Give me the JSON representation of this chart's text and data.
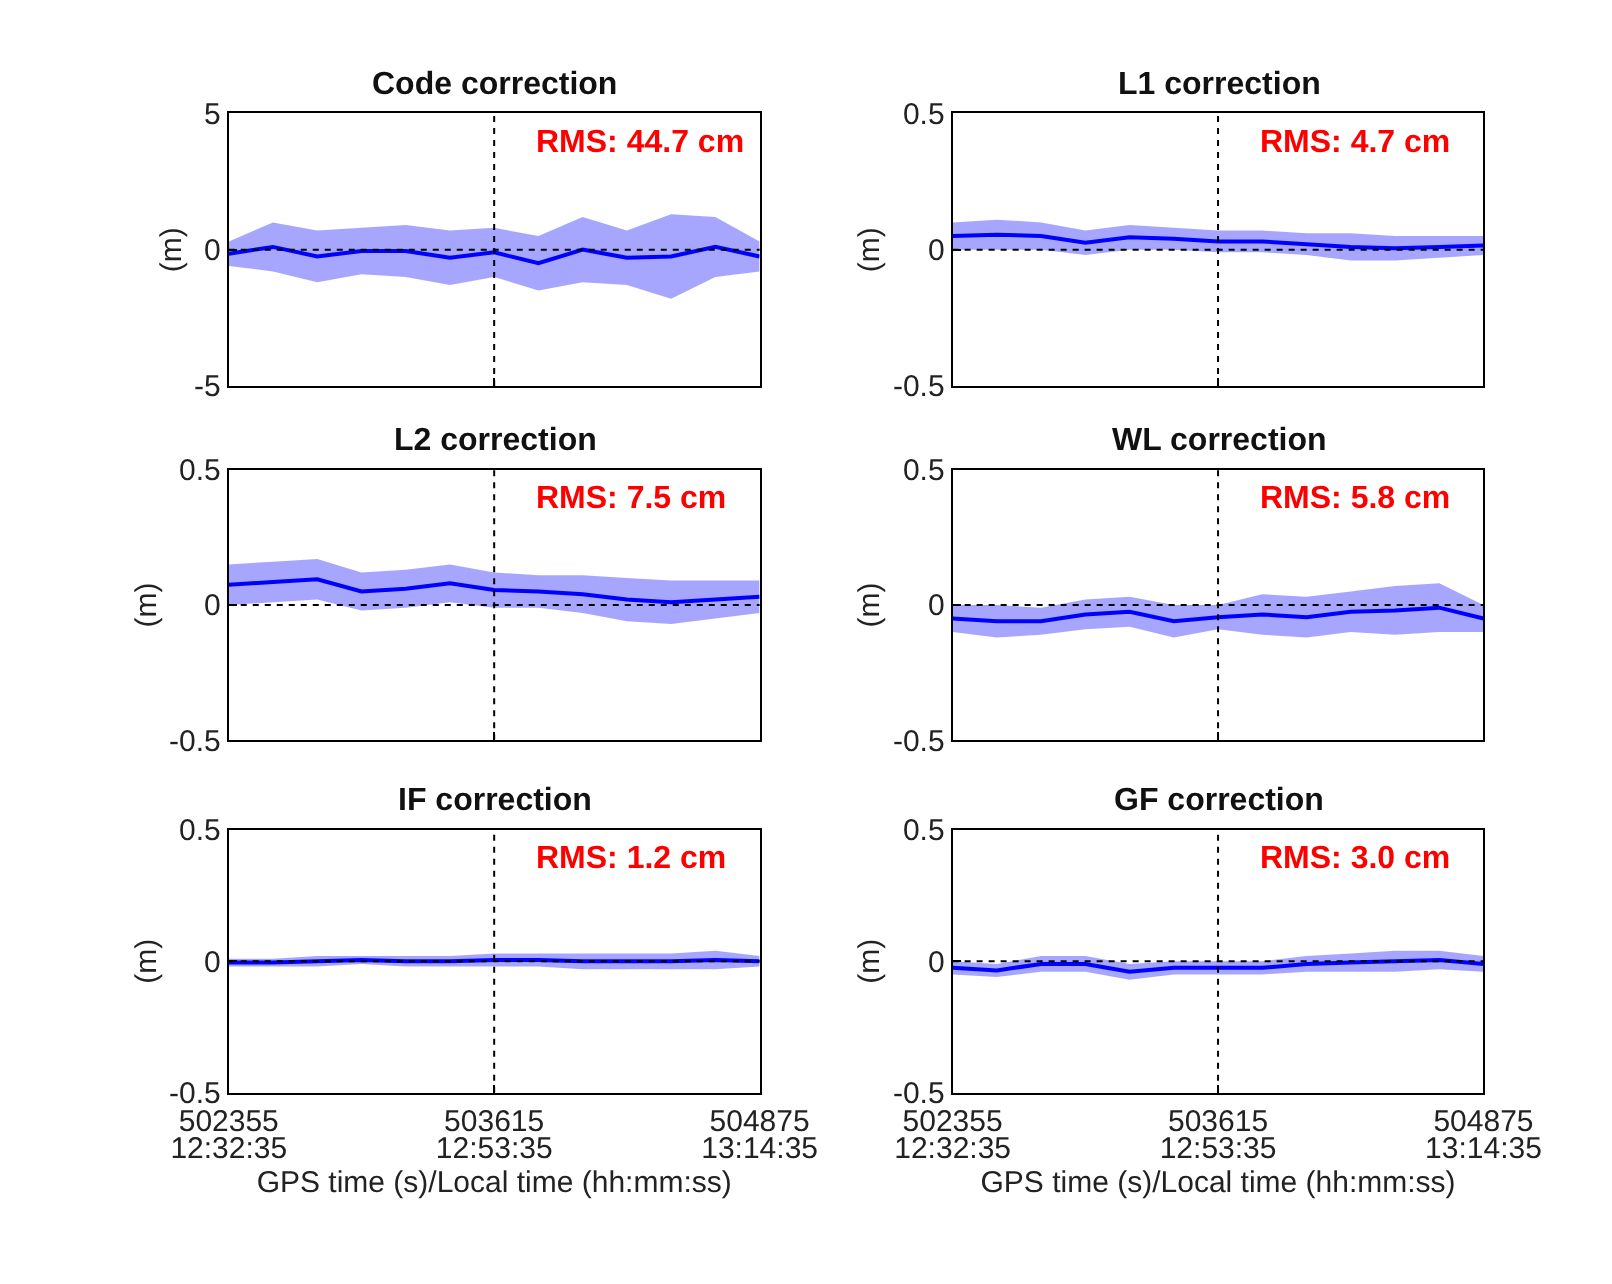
{
  "chart_data": [
    {
      "type": "line",
      "title": "Code correction",
      "ylabel": "(m)",
      "x": [
        502355,
        502565,
        502775,
        502985,
        503195,
        503405,
        503615,
        503825,
        504035,
        504245,
        504455,
        504665,
        504875
      ],
      "xlim": [
        502355,
        504875
      ],
      "xticks": [
        {
          "value": 502355,
          "label": null
        },
        {
          "value": 503615,
          "label": null
        },
        {
          "value": 504875,
          "label": null
        }
      ],
      "ylim": [
        -5,
        5
      ],
      "yticks": [
        -5,
        0,
        5
      ],
      "tick_labels": "y",
      "annotations": [
        "RMS: 44.7 cm"
      ],
      "ref_lines": [
        {
          "axis": "x",
          "value": 503615,
          "line_style": "dotted",
          "color": "#000000"
        },
        {
          "axis": "y",
          "value": 0,
          "line_style": "dotted",
          "color": "#000000"
        }
      ],
      "series": [
        {
          "color": "#0000ff",
          "values": [
            -0.15,
            0.1,
            -0.25,
            -0.05,
            -0.05,
            -0.3,
            -0.1,
            -0.5,
            0,
            -0.3,
            -0.25,
            0.1,
            -0.25
          ],
          "lower": [
            -0.6,
            -0.8,
            -1.2,
            -0.9,
            -1.0,
            -1.3,
            -1.0,
            -1.5,
            -1.2,
            -1.3,
            -1.8,
            -1.0,
            -0.8
          ],
          "upper": [
            0.3,
            1.0,
            0.7,
            0.8,
            0.9,
            0.7,
            0.8,
            0.5,
            1.2,
            0.7,
            1.3,
            1.2,
            0.3
          ]
        }
      ]
    },
    {
      "type": "line",
      "title": "L1 correction",
      "ylabel": "(m)",
      "x": [
        502355,
        502565,
        502775,
        502985,
        503195,
        503405,
        503615,
        503825,
        504035,
        504245,
        504455,
        504665,
        504875
      ],
      "xlim": [
        502355,
        504875
      ],
      "xticks": [
        {
          "value": 502355,
          "label": null
        },
        {
          "value": 503615,
          "label": null
        },
        {
          "value": 504875,
          "label": null
        }
      ],
      "ylim": [
        -0.5,
        0.5
      ],
      "yticks": [
        -0.5,
        0,
        0.5
      ],
      "tick_labels": "y",
      "annotations": [
        "RMS: 4.7 cm"
      ],
      "ref_lines": [
        {
          "axis": "x",
          "value": 503615,
          "line_style": "dotted",
          "color": "#000000"
        },
        {
          "axis": "y",
          "value": 0,
          "line_style": "dotted",
          "color": "#000000"
        }
      ],
      "series": [
        {
          "color": "#0000ff",
          "values": [
            0.05,
            0.055,
            0.05,
            0.025,
            0.045,
            0.04,
            0.03,
            0.03,
            0.02,
            0.01,
            0.005,
            0.01,
            0.015
          ],
          "lower": [
            0.0,
            0.0,
            0.0,
            -0.02,
            0.0,
            0.0,
            -0.01,
            -0.01,
            -0.02,
            -0.04,
            -0.04,
            -0.03,
            -0.02
          ],
          "upper": [
            0.1,
            0.11,
            0.1,
            0.07,
            0.09,
            0.08,
            0.07,
            0.07,
            0.06,
            0.06,
            0.05,
            0.05,
            0.05
          ]
        }
      ]
    },
    {
      "type": "line",
      "title": "L2 correction",
      "ylabel": "(m)",
      "x": [
        502355,
        502565,
        502775,
        502985,
        503195,
        503405,
        503615,
        503825,
        504035,
        504245,
        504455,
        504665,
        504875
      ],
      "xlim": [
        502355,
        504875
      ],
      "xticks": [
        {
          "value": 502355,
          "label": null
        },
        {
          "value": 503615,
          "label": null
        },
        {
          "value": 504875,
          "label": null
        }
      ],
      "ylim": [
        -0.5,
        0.5
      ],
      "yticks": [
        -0.5,
        0,
        0.5
      ],
      "tick_labels": "y",
      "annotations": [
        "RMS: 7.5 cm"
      ],
      "ref_lines": [
        {
          "axis": "x",
          "value": 503615,
          "line_style": "dotted",
          "color": "#000000"
        },
        {
          "axis": "y",
          "value": 0,
          "line_style": "dotted",
          "color": "#000000"
        }
      ],
      "series": [
        {
          "color": "#0000ff",
          "values": [
            0.075,
            0.085,
            0.095,
            0.05,
            0.06,
            0.08,
            0.055,
            0.05,
            0.04,
            0.02,
            0.01,
            0.02,
            0.03
          ],
          "lower": [
            0.0,
            0.01,
            0.02,
            -0.02,
            -0.01,
            0.01,
            -0.01,
            -0.01,
            -0.03,
            -0.06,
            -0.07,
            -0.05,
            -0.03
          ],
          "upper": [
            0.15,
            0.16,
            0.17,
            0.12,
            0.13,
            0.15,
            0.12,
            0.11,
            0.11,
            0.1,
            0.09,
            0.09,
            0.09
          ]
        }
      ]
    },
    {
      "type": "line",
      "title": "WL correction",
      "ylabel": "(m)",
      "x": [
        502355,
        502565,
        502775,
        502985,
        503195,
        503405,
        503615,
        503825,
        504035,
        504245,
        504455,
        504665,
        504875
      ],
      "xlim": [
        502355,
        504875
      ],
      "xticks": [
        {
          "value": 502355,
          "label": null
        },
        {
          "value": 503615,
          "label": null
        },
        {
          "value": 504875,
          "label": null
        }
      ],
      "ylim": [
        -0.5,
        0.5
      ],
      "yticks": [
        -0.5,
        0,
        0.5
      ],
      "tick_labels": "y",
      "annotations": [
        "RMS: 5.8 cm"
      ],
      "ref_lines": [
        {
          "axis": "x",
          "value": 503615,
          "line_style": "dotted",
          "color": "#000000"
        },
        {
          "axis": "y",
          "value": 0,
          "line_style": "dotted",
          "color": "#000000"
        }
      ],
      "series": [
        {
          "color": "#0000ff",
          "values": [
            -0.05,
            -0.06,
            -0.06,
            -0.035,
            -0.025,
            -0.06,
            -0.045,
            -0.035,
            -0.045,
            -0.025,
            -0.02,
            -0.01,
            -0.05
          ],
          "lower": [
            -0.1,
            -0.12,
            -0.11,
            -0.09,
            -0.08,
            -0.12,
            -0.09,
            -0.11,
            -0.12,
            -0.1,
            -0.11,
            -0.1,
            -0.1
          ],
          "upper": [
            0.0,
            0.0,
            -0.01,
            0.02,
            0.03,
            0.0,
            0.0,
            0.04,
            0.03,
            0.05,
            0.07,
            0.08,
            0.0
          ]
        }
      ]
    },
    {
      "type": "line",
      "title": "IF correction",
      "ylabel": "(m)",
      "xlabel": "GPS time (s)/Local time (hh:mm:ss)",
      "x": [
        502355,
        502565,
        502775,
        502985,
        503195,
        503405,
        503615,
        503825,
        504035,
        504245,
        504455,
        504665,
        504875
      ],
      "xlim": [
        502355,
        504875
      ],
      "xticks": [
        502355,
        503615,
        504875
      ],
      "x2lim": [
        12.54306,
        13.24306
      ],
      "x2ticks": [
        {
          "value": 12.54306,
          "label": "12:32:35"
        },
        {
          "value": 12.89306,
          "label": "12:53:35"
        },
        {
          "value": 13.24306,
          "label": "13:14:35"
        }
      ],
      "ylim": [
        -0.5,
        0.5
      ],
      "yticks": [
        -0.5,
        0,
        0.5
      ],
      "annotations": [
        "RMS: 1.2 cm"
      ],
      "ref_lines": [
        {
          "axis": "x",
          "value": 503615,
          "line_style": "dotted",
          "color": "#000000"
        },
        {
          "axis": "y",
          "value": 0,
          "line_style": "dotted",
          "color": "#000000"
        }
      ],
      "series": [
        {
          "color": "#0000ff",
          "values": [
            -0.005,
            -0.005,
            0,
            0.005,
            0,
            0,
            0.005,
            0.005,
            0,
            0,
            0,
            0.005,
            0
          ],
          "lower": [
            -0.02,
            -0.02,
            -0.02,
            -0.01,
            -0.02,
            -0.02,
            -0.02,
            -0.02,
            -0.03,
            -0.03,
            -0.03,
            -0.03,
            -0.02
          ],
          "upper": [
            0.01,
            0.01,
            0.02,
            0.02,
            0.02,
            0.02,
            0.03,
            0.03,
            0.03,
            0.03,
            0.03,
            0.04,
            0.02
          ]
        }
      ]
    },
    {
      "type": "line",
      "title": "GF correction",
      "ylabel": "(m)",
      "xlabel": "GPS time (s)/Local time (hh:mm:ss)",
      "x": [
        502355,
        502565,
        502775,
        502985,
        503195,
        503405,
        503615,
        503825,
        504035,
        504245,
        504455,
        504665,
        504875
      ],
      "xlim": [
        502355,
        504875
      ],
      "xticks": [
        502355,
        503615,
        504875
      ],
      "x2lim": [
        12.54306,
        13.24306
      ],
      "x2ticks": [
        {
          "value": 12.54306,
          "label": "12:32:35"
        },
        {
          "value": 12.89306,
          "label": "12:53:35"
        },
        {
          "value": 13.24306,
          "label": "13:14:35"
        }
      ],
      "ylim": [
        -0.5,
        0.5
      ],
      "yticks": [
        -0.5,
        0,
        0.5
      ],
      "annotations": [
        "RMS: 3.0 cm"
      ],
      "ref_lines": [
        {
          "axis": "x",
          "value": 503615,
          "line_style": "dotted",
          "color": "#000000"
        },
        {
          "axis": "y",
          "value": 0,
          "line_style": "dotted",
          "color": "#000000"
        }
      ],
      "series": [
        {
          "color": "#0000ff",
          "values": [
            -0.025,
            -0.035,
            -0.01,
            -0.01,
            -0.04,
            -0.025,
            -0.025,
            -0.025,
            -0.01,
            -0.005,
            0,
            0.005,
            -0.01
          ],
          "lower": [
            -0.05,
            -0.06,
            -0.04,
            -0.04,
            -0.07,
            -0.05,
            -0.05,
            -0.05,
            -0.04,
            -0.04,
            -0.04,
            -0.03,
            -0.04
          ],
          "upper": [
            0.0,
            -0.01,
            0.02,
            0.02,
            -0.01,
            0.0,
            0.0,
            0.0,
            0.02,
            0.03,
            0.04,
            0.04,
            0.02
          ]
        }
      ]
    }
  ]
}
